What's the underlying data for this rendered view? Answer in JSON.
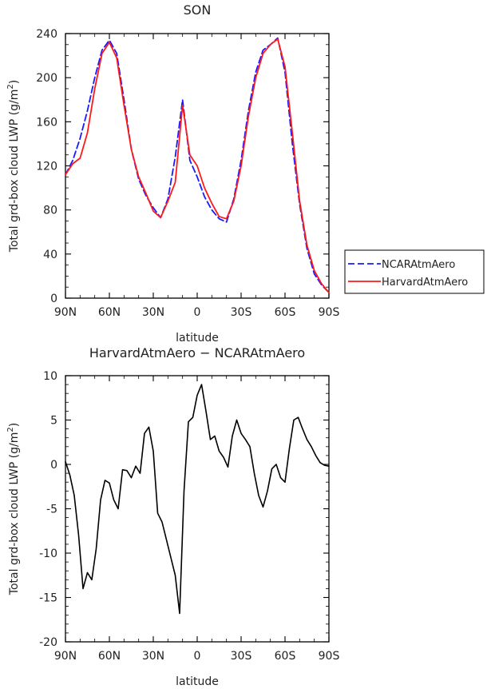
{
  "chart_data": [
    {
      "type": "line",
      "title": "SON",
      "xlabel": "latitude",
      "ylabel": "Total grd-box cloud LWP (g/m²)",
      "x_ticks": [
        "90N",
        "60N",
        "30N",
        "0",
        "30S",
        "60S",
        "90S"
      ],
      "y_ticks": [
        "0",
        "40",
        "80",
        "120",
        "160",
        "200",
        "240"
      ],
      "x_domain": [
        90,
        -90
      ],
      "ylim": [
        0,
        240
      ],
      "legend": [
        "NCARAtmAero",
        "HarvardAtmAero"
      ],
      "series": [
        {
          "name": "NCARAtmAero",
          "color": "#1a1aff",
          "dash": "dashed",
          "x": [
            90,
            85,
            80,
            75,
            70,
            65,
            60,
            55,
            50,
            45,
            40,
            35,
            30,
            25,
            20,
            15,
            10,
            5,
            0,
            -5,
            -10,
            -15,
            -20,
            -25,
            -30,
            -35,
            -40,
            -45,
            -50,
            -55,
            -60,
            -65,
            -70,
            -75,
            -80,
            -85,
            -90
          ],
          "y": [
            112,
            125,
            145,
            170,
            200,
            225,
            234,
            222,
            180,
            135,
            108,
            93,
            82,
            73,
            90,
            128,
            180,
            125,
            110,
            92,
            80,
            72,
            69,
            90,
            125,
            170,
            205,
            225,
            230,
            236,
            205,
            140,
            85,
            45,
            22,
            12,
            5
          ]
        },
        {
          "name": "HarvardAtmAero",
          "color": "#ff1a1a",
          "dash": "solid",
          "x": [
            90,
            85,
            80,
            75,
            70,
            65,
            60,
            55,
            50,
            45,
            40,
            35,
            30,
            25,
            20,
            15,
            10,
            5,
            0,
            -5,
            -10,
            -15,
            -20,
            -25,
            -30,
            -35,
            -40,
            -45,
            -50,
            -55,
            -60,
            -65,
            -70,
            -75,
            -80,
            -85,
            -90
          ],
          "y": [
            112,
            122,
            127,
            150,
            190,
            222,
            232,
            218,
            175,
            135,
            110,
            95,
            79,
            73,
            88,
            105,
            175,
            130,
            120,
            100,
            86,
            74,
            72,
            88,
            120,
            165,
            200,
            222,
            230,
            235,
            210,
            150,
            88,
            48,
            25,
            13,
            5
          ]
        }
      ],
      "grid": false,
      "legend_placement": "right"
    },
    {
      "type": "line",
      "title": "HarvardAtmAero − NCARAtmAero",
      "xlabel": "latitude",
      "ylabel": "Total grd-box cloud LWP (g/m²)",
      "x_ticks": [
        "90N",
        "60N",
        "30N",
        "0",
        "30S",
        "60S",
        "90S"
      ],
      "y_ticks": [
        "-20",
        "-15",
        "-10",
        "-5",
        "0",
        "5",
        "10"
      ],
      "x_domain": [
        90,
        -90
      ],
      "ylim": [
        -20,
        10
      ],
      "series": [
        {
          "color": "#000000",
          "x": [
            90,
            87,
            84,
            81,
            78,
            75,
            72,
            69,
            66,
            63,
            60,
            57,
            54,
            51,
            48,
            45,
            42,
            39,
            36,
            33,
            30,
            27,
            24,
            21,
            18,
            15,
            12,
            9,
            6,
            3,
            0,
            -3,
            -6,
            -9,
            -12,
            -15,
            -18,
            -21,
            -24,
            -27,
            -30,
            -33,
            -36,
            -39,
            -42,
            -45,
            -48,
            -51,
            -54,
            -57,
            -60,
            -63,
            -66,
            -69,
            -72,
            -75,
            -78,
            -81,
            -84,
            -87,
            -90
          ],
          "y": [
            0.3,
            -1.2,
            -3.5,
            -8.0,
            -14.0,
            -12.2,
            -13.0,
            -9.5,
            -4.0,
            -1.8,
            -2.1,
            -4.0,
            -5.0,
            -0.6,
            -0.7,
            -1.5,
            -0.2,
            -1.0,
            3.5,
            4.2,
            1.5,
            -5.5,
            -6.5,
            -8.5,
            -10.5,
            -12.5,
            -16.8,
            -3.0,
            4.8,
            5.3,
            7.8,
            9.0,
            6.0,
            2.8,
            3.2,
            1.5,
            0.8,
            -0.3,
            3.2,
            5.0,
            3.5,
            2.8,
            2.0,
            -1.0,
            -3.5,
            -4.8,
            -3.0,
            -0.5,
            0.0,
            -1.5,
            -2.0,
            1.8,
            5.0,
            5.3,
            4.0,
            2.8,
            2.0,
            1.0,
            0.2,
            -0.1,
            -0.2
          ]
        }
      ],
      "grid": false
    }
  ]
}
